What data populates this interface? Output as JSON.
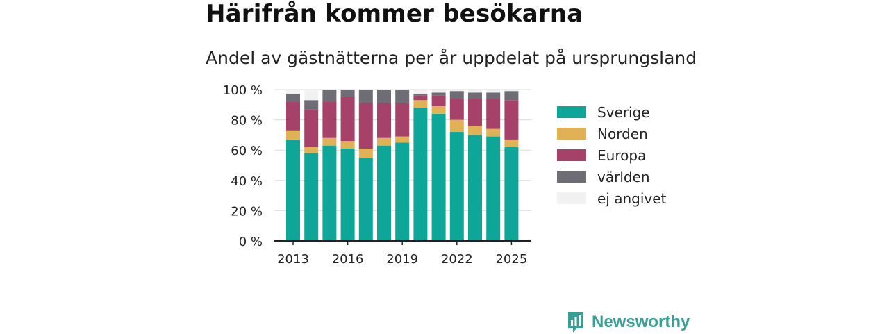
{
  "title": "Härifrån kommer besökarna",
  "subtitle": "Andel av gästnätterna per år uppdelat på ursprungsland",
  "brand": {
    "name": "Newsworthy",
    "logo_icon": "bar-chart-icon",
    "color": "#3a9e97"
  },
  "chart_data": {
    "type": "bar",
    "stacked": true,
    "x": [
      2013,
      2014,
      2015,
      2016,
      2017,
      2018,
      2019,
      2020,
      2021,
      2022,
      2023,
      2024,
      2025
    ],
    "x_tick_labels": [
      "2013",
      "2016",
      "2019",
      "2022",
      "2025"
    ],
    "y_tick_labels": [
      "0 %",
      "20 %",
      "40 %",
      "60 %",
      "80 %",
      "100 %"
    ],
    "ylim": [
      0,
      100
    ],
    "grid": true,
    "legend_position": "right",
    "series": [
      {
        "name": "Sverige",
        "color": "#0ea699",
        "values": [
          67,
          58,
          63,
          61,
          55,
          63,
          65,
          88,
          84,
          72,
          70,
          69,
          62
        ]
      },
      {
        "name": "Norden",
        "color": "#e0b155",
        "values": [
          6,
          4,
          5,
          5,
          6,
          5,
          4,
          5,
          5,
          8,
          6,
          5,
          5
        ]
      },
      {
        "name": "Europa",
        "color": "#a6416a",
        "values": [
          19,
          25,
          24,
          29,
          30,
          23,
          22,
          3,
          7,
          14,
          18,
          20,
          26
        ]
      },
      {
        "name": "världen",
        "color": "#6e6c74",
        "values": [
          5,
          6,
          8,
          5,
          9,
          9,
          9,
          1,
          2,
          5,
          4,
          4,
          6
        ]
      },
      {
        "name": "ej angivet",
        "color": "#f1f1f1",
        "values": [
          3,
          7,
          0,
          0,
          0,
          0,
          0,
          3,
          2,
          1,
          2,
          2,
          1
        ]
      }
    ]
  }
}
